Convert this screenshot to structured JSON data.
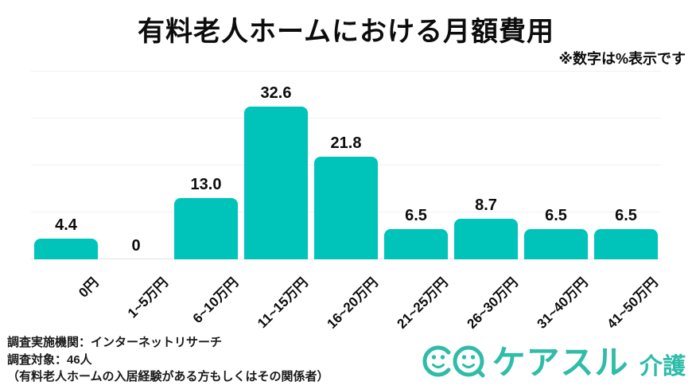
{
  "title": "有料老人ホームにおける月額費用",
  "note": "※数字は%表示です",
  "chart_data": {
    "type": "bar",
    "title": "有料老人ホームにおける月額費用",
    "unit": "%",
    "categories": [
      "0円",
      "1~5万円",
      "6~10万円",
      "11~15万円",
      "16~20万円",
      "21~25万円",
      "26~30万円",
      "31~40万円",
      "41~50万円"
    ],
    "values": [
      4.4,
      0,
      13.0,
      32.6,
      21.8,
      6.5,
      8.7,
      6.5,
      6.5
    ],
    "value_labels": [
      "4.4",
      "0",
      "13.0",
      "32.6",
      "21.8",
      "6.5",
      "8.7",
      "6.5",
      "6.5"
    ],
    "xlabel": "",
    "ylabel": "",
    "ylim": [
      0,
      40
    ],
    "grid_step": 10,
    "grid": true,
    "legend": false,
    "bar_color": "#00c4ba"
  },
  "footer": {
    "line1": "調査実施機関：インターネットリサーチ",
    "line2": "調査対象：46人",
    "line3": "（有料老人ホームの入居経験がある方もしくはその関係者）"
  },
  "logo": {
    "text": "ケアスル",
    "suffix": "介護",
    "color": "#2fbca8"
  }
}
